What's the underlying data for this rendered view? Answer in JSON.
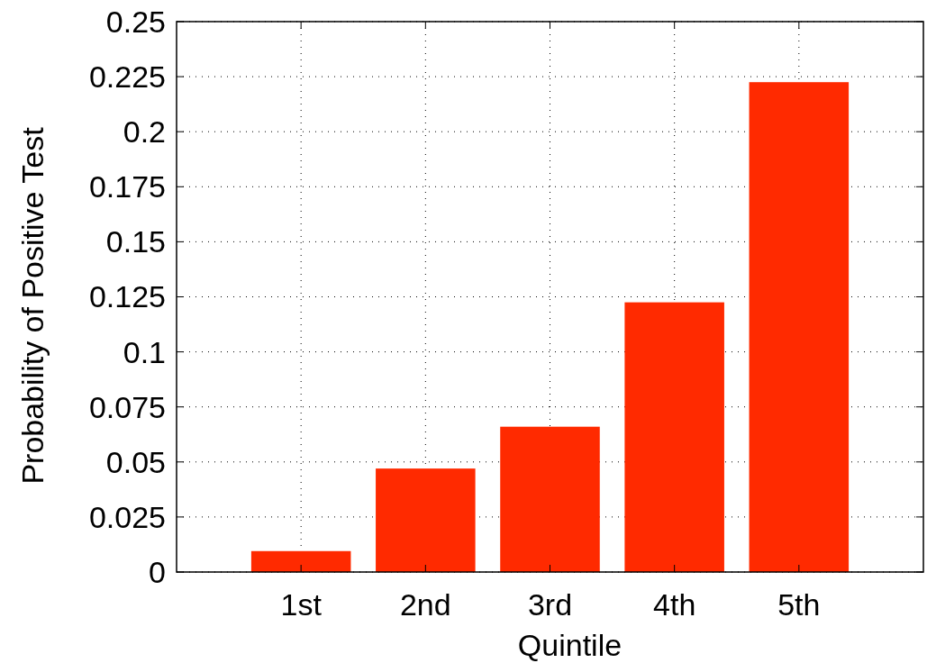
{
  "chart_data": {
    "type": "bar",
    "xlabel": "Quintile",
    "ylabel": "Probability of Positive Test",
    "categories": [
      "1st",
      "2nd",
      "3rd",
      "4th",
      "5th"
    ],
    "values": [
      0.0095,
      0.047,
      0.066,
      0.1225,
      0.2225
    ],
    "color": "#ff2a00",
    "ylim": [
      0,
      0.25
    ],
    "yticks": [
      0,
      0.025,
      0.05,
      0.075,
      0.1,
      0.125,
      0.15,
      0.175,
      0.2,
      0.225,
      0.25
    ],
    "grid": true
  }
}
